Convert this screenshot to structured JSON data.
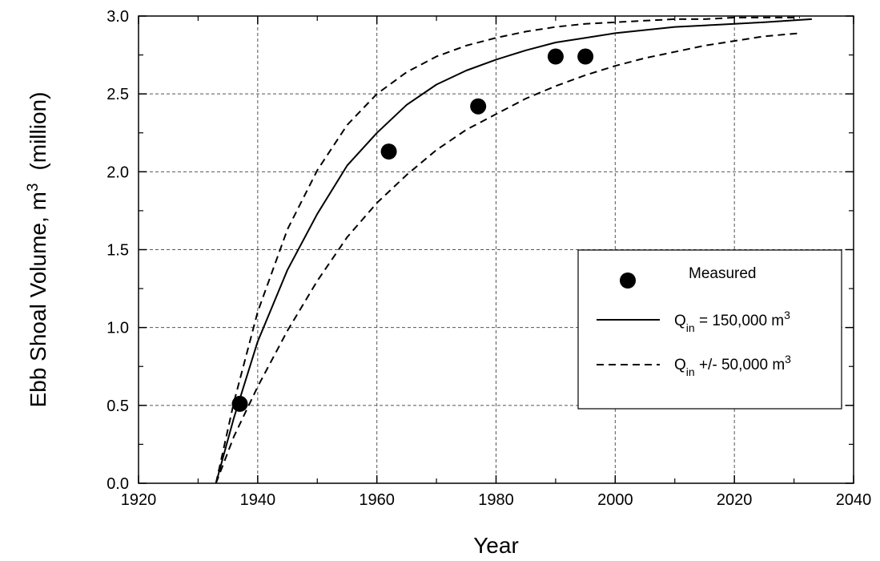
{
  "chart_data": {
    "type": "line",
    "xlabel": "Year",
    "ylabel": {
      "main": "Ebb Shoal Volume, m",
      "sup": "3",
      "suffix": "(million)"
    },
    "xlim": [
      1920,
      2040
    ],
    "ylim": [
      0.0,
      3.0
    ],
    "x_ticks": [
      1920,
      1940,
      1960,
      1980,
      2000,
      2020,
      2040
    ],
    "x_tick_labels": [
      "1920",
      "1940",
      "1960",
      "1980",
      "2000",
      "2020",
      "2040"
    ],
    "y_ticks": [
      0.0,
      0.5,
      1.0,
      1.5,
      2.0,
      2.5,
      3.0
    ],
    "y_tick_labels": [
      "0.0",
      "0.5",
      "1.0",
      "1.5",
      "2.0",
      "2.5",
      "3.0"
    ],
    "grid": true,
    "legend_position": "right",
    "legend": [
      {
        "marker": "circle",
        "label": "Measured"
      },
      {
        "marker": "solid-line",
        "label_main": "Q",
        "label_sub": "in",
        "label_rest": " = 150,000 m",
        "label_sup": "3"
      },
      {
        "marker": "dashed-line",
        "label_main": "Q",
        "label_sub": "in",
        "label_rest": " +/- 50,000 m",
        "label_sup": "3"
      }
    ],
    "series": [
      {
        "name": "Measured",
        "kind": "scatter",
        "x": [
          1937,
          1962,
          1977,
          1990,
          1995
        ],
        "y": [
          0.51,
          2.13,
          2.42,
          2.74,
          2.74
        ]
      },
      {
        "kind": "solid",
        "x": [
          1933,
          1936,
          1940,
          1945,
          1950,
          1955,
          1960,
          1965,
          1970,
          1975,
          1980,
          1985,
          1990,
          1995,
          2000,
          2005,
          2010,
          2015,
          2020,
          2025,
          2033
        ],
        "y": [
          0.0,
          0.42,
          0.91,
          1.37,
          1.73,
          2.04,
          2.25,
          2.43,
          2.56,
          2.65,
          2.72,
          2.78,
          2.83,
          2.86,
          2.89,
          2.91,
          2.93,
          2.94,
          2.95,
          2.96,
          2.98
        ]
      },
      {
        "kind": "dashed",
        "x": [
          1933,
          1936,
          1940,
          1945,
          1950,
          1955,
          1960,
          1965,
          1970,
          1975,
          1980,
          1985,
          1990,
          1995,
          2000,
          2005,
          2010,
          2015,
          2020,
          2025,
          2031
        ],
        "y": [
          0.0,
          0.52,
          1.1,
          1.63,
          2.01,
          2.3,
          2.5,
          2.64,
          2.74,
          2.81,
          2.86,
          2.9,
          2.93,
          2.95,
          2.96,
          2.97,
          2.98,
          2.98,
          2.99,
          2.99,
          2.99
        ]
      },
      {
        "kind": "dashed",
        "x": [
          1933,
          1936,
          1940,
          1945,
          1950,
          1955,
          1960,
          1965,
          1970,
          1975,
          1980,
          1985,
          1990,
          1995,
          2000,
          2005,
          2010,
          2015,
          2020,
          2025,
          2031
        ],
        "y": [
          0.0,
          0.3,
          0.62,
          0.98,
          1.3,
          1.58,
          1.8,
          1.98,
          2.14,
          2.27,
          2.37,
          2.47,
          2.55,
          2.62,
          2.68,
          2.73,
          2.77,
          2.81,
          2.84,
          2.87,
          2.89
        ]
      }
    ]
  }
}
